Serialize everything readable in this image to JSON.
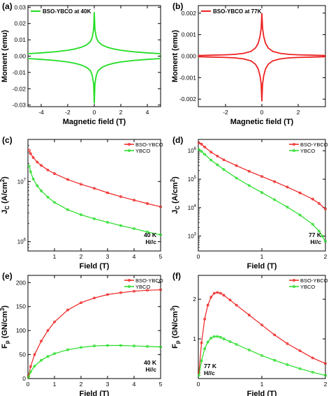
{
  "chart_data": [
    {
      "panel": "(a)",
      "type": "line",
      "title": "",
      "xlabel": "Magnetic field (T)",
      "ylabel": "Moment (emu)",
      "xlim": [
        -5,
        5
      ],
      "ylim": [
        -0.031,
        0.031
      ],
      "xscale": "linear",
      "yscale": "linear",
      "xticks": [
        -4,
        -2,
        0,
        2,
        4
      ],
      "yticks": [
        -0.03,
        -0.02,
        -0.01,
        0.0,
        0.01,
        0.02,
        0.03
      ],
      "ytick_labels": [
        "-0.03",
        "-0.02",
        "-0.01",
        "0.00",
        "0.01",
        "0.02",
        "0.03"
      ],
      "legend": "top-left",
      "grid": false,
      "series": [
        {
          "name": "BSO-YBCO at 40K",
          "color": "#22dd22",
          "style": "line",
          "branch": "upper",
          "x": [
            -5,
            -4,
            -3,
            -2,
            -1.5,
            -1,
            -0.6,
            -0.3,
            -0.15,
            -0.05,
            0,
            0.05,
            0.15,
            0.3,
            0.6,
            1,
            1.5,
            2,
            3,
            4,
            5
          ],
          "y": [
            0.0015,
            0.002,
            0.0026,
            0.0036,
            0.0043,
            0.0054,
            0.0068,
            0.0088,
            0.0115,
            0.0165,
            0.027,
            0.0165,
            0.0115,
            0.0088,
            0.0068,
            0.0054,
            0.0043,
            0.0036,
            0.0026,
            0.002,
            0.0015
          ]
        },
        {
          "name": "",
          "color": "#22dd22",
          "style": "line",
          "branch": "lower",
          "x": [
            -5,
            -4,
            -3,
            -2,
            -1.5,
            -1,
            -0.6,
            -0.3,
            -0.15,
            -0.05,
            0,
            0.05,
            0.15,
            0.3,
            0.6,
            1,
            1.5,
            2,
            3,
            4,
            5
          ],
          "y": [
            -0.0015,
            -0.002,
            -0.0026,
            -0.0036,
            -0.0043,
            -0.0054,
            -0.0068,
            -0.0088,
            -0.0118,
            -0.017,
            -0.029,
            -0.017,
            -0.0118,
            -0.0088,
            -0.0068,
            -0.0054,
            -0.0043,
            -0.0036,
            -0.0026,
            -0.002,
            -0.0015
          ]
        }
      ]
    },
    {
      "panel": "(b)",
      "type": "line",
      "title": "",
      "xlabel": "Magnetic field (T)",
      "ylabel": "Moment (emu)",
      "xlim": [
        -3.5,
        3.5
      ],
      "ylim": [
        -0.00235,
        0.00235
      ],
      "xscale": "linear",
      "yscale": "linear",
      "xticks": [
        -2,
        0,
        2
      ],
      "yticks": [
        -0.002,
        -0.001,
        0.0,
        0.001,
        0.002
      ],
      "ytick_labels": [
        "-0.002",
        "-0.001",
        "0.000",
        "0.001",
        "0.002"
      ],
      "legend": "top-left",
      "grid": false,
      "series": [
        {
          "name": "BSO-YBCO at 77K",
          "color": "#ee2222",
          "style": "line",
          "branch": "upper",
          "x": [
            -3.5,
            -3,
            -2,
            -1.5,
            -1,
            -0.6,
            -0.35,
            -0.2,
            -0.1,
            -0.04,
            0,
            0.04,
            0.1,
            0.2,
            0.35,
            0.6,
            1,
            1.5,
            2,
            3,
            3.5
          ],
          "y": [
            3e-05,
            4e-05,
            6e-05,
            8e-05,
            0.00013,
            0.00022,
            0.00038,
            0.0006,
            0.00092,
            0.0013,
            0.002,
            0.0013,
            0.00092,
            0.0006,
            0.00038,
            0.00022,
            0.00013,
            8e-05,
            6e-05,
            4e-05,
            3e-05
          ]
        },
        {
          "name": "",
          "color": "#ee2222",
          "style": "line",
          "branch": "lower",
          "x": [
            -3.5,
            -3,
            -2,
            -1.5,
            -1,
            -0.6,
            -0.35,
            -0.2,
            -0.1,
            -0.04,
            0,
            0.04,
            0.1,
            0.2,
            0.35,
            0.6,
            1,
            1.5,
            2,
            3,
            3.5
          ],
          "y": [
            -3e-05,
            -4e-05,
            -6e-05,
            -8e-05,
            -0.00013,
            -0.00022,
            -0.00038,
            -0.0006,
            -0.00092,
            -0.0013,
            -0.0021,
            -0.0013,
            -0.00092,
            -0.0006,
            -0.00038,
            -0.00022,
            -0.00013,
            -8e-05,
            -6e-05,
            -4e-05,
            -3e-05
          ]
        }
      ]
    },
    {
      "panel": "(c)",
      "type": "line",
      "title": "",
      "xlabel": "Field (T)",
      "ylabel": "J",
      "ylabel_sub": "C",
      "ylabel_rest": " (A/cm",
      "ylabel_sup": "2",
      "ylabel_end": ")",
      "xlim": [
        0,
        5
      ],
      "ylim": [
        700000,
        50000000
      ],
      "xscale": "linear",
      "yscale": "log",
      "xticks": [
        1,
        2,
        3,
        4,
        5
      ],
      "yticks": [
        1000000,
        10000000
      ],
      "ytick_base": "10",
      "ytick_exponents": [
        "6",
        "7"
      ],
      "legend": "top-right",
      "annotation": [
        "40 K",
        "H//c"
      ],
      "grid": false,
      "series": [
        {
          "name": "BSO-YBCO",
          "color": "#ee2222",
          "style": "line-markers",
          "x": [
            0.05,
            0.1,
            0.2,
            0.35,
            0.5,
            0.75,
            1,
            1.5,
            2,
            2.5,
            3,
            3.5,
            4,
            4.5,
            5
          ],
          "y": [
            33000000,
            29000000,
            25000000,
            21000000,
            18500000,
            15500000,
            13500000,
            10800000,
            9000000,
            7700000,
            6500000,
            5600000,
            4900000,
            4300000,
            3800000
          ]
        },
        {
          "name": "YBCO",
          "color": "#22dd22",
          "style": "line-markers",
          "x": [
            0.05,
            0.1,
            0.2,
            0.35,
            0.5,
            0.75,
            1,
            1.5,
            2,
            2.5,
            3,
            3.5,
            4,
            4.5,
            5
          ],
          "y": [
            18000000,
            14500000,
            11000000,
            8500000,
            7000000,
            5500000,
            4500000,
            3400000,
            2800000,
            2400000,
            2100000,
            1850000,
            1650000,
            1450000,
            1300000
          ]
        }
      ]
    },
    {
      "panel": "(d)",
      "type": "line",
      "title": "",
      "xlabel": "Field (T)",
      "ylabel": "J",
      "ylabel_sub": "C",
      "ylabel_rest": " (A/cm",
      "ylabel_sup": "2",
      "ylabel_end": ")",
      "xlim": [
        0,
        2
      ],
      "ylim": [
        300,
        2500000
      ],
      "xscale": "linear",
      "yscale": "log",
      "xticks": [
        0,
        1,
        2
      ],
      "yticks": [
        1000,
        10000,
        100000,
        1000000
      ],
      "ytick_base": "10",
      "ytick_exponents": [
        "3",
        "4",
        "5",
        "6"
      ],
      "legend": "top-right",
      "annotation": [
        "77 K",
        "H//c"
      ],
      "grid": false,
      "series": [
        {
          "name": "BSO-YBCO",
          "color": "#ee2222",
          "style": "line-markers",
          "x": [
            0.01,
            0.05,
            0.1,
            0.2,
            0.3,
            0.4,
            0.6,
            0.8,
            1.0,
            1.2,
            1.4,
            1.6,
            1.8,
            1.9,
            2.0
          ],
          "y": [
            1900000,
            1700000,
            1350000,
            900000,
            650000,
            480000,
            300000,
            190000,
            125000,
            82000,
            53000,
            33000,
            20000,
            14000,
            9000
          ]
        },
        {
          "name": "YBCO",
          "color": "#22dd22",
          "style": "line-markers",
          "x": [
            0.01,
            0.05,
            0.1,
            0.2,
            0.3,
            0.4,
            0.6,
            0.8,
            1.0,
            1.2,
            1.4,
            1.6,
            1.8,
            1.9,
            1.95,
            2.0
          ],
          "y": [
            1100000,
            950000,
            750000,
            470000,
            320000,
            220000,
            110000,
            60000,
            34000,
            19000,
            10500,
            5500,
            2600,
            1500,
            1000,
            650
          ]
        }
      ]
    },
    {
      "panel": "(e)",
      "type": "line",
      "title": "",
      "xlabel": "Field (T)",
      "ylabel": "F",
      "ylabel_sub": "p",
      "ylabel_rest": " (GN/cm",
      "ylabel_sup": "3",
      "ylabel_end": ")",
      "xlim": [
        0,
        5
      ],
      "ylim": [
        0,
        215
      ],
      "xscale": "linear",
      "yscale": "linear",
      "xticks": [
        0,
        1,
        2,
        3,
        4,
        5
      ],
      "yticks": [
        0,
        50,
        100,
        150,
        200
      ],
      "legend": "top-right",
      "annotation": [
        "40 K",
        "H//c"
      ],
      "grid": false,
      "series": [
        {
          "name": "BSO-YBCO",
          "color": "#ee2222",
          "style": "line-markers",
          "x": [
            0.02,
            0.1,
            0.25,
            0.5,
            0.75,
            1,
            1.5,
            2,
            2.5,
            3,
            3.5,
            4,
            4.5,
            5
          ],
          "y": [
            5,
            25,
            50,
            78,
            100,
            118,
            143,
            158,
            168,
            175,
            179,
            182,
            184,
            185
          ]
        },
        {
          "name": "YBCO",
          "color": "#22dd22",
          "style": "line-markers",
          "x": [
            0.02,
            0.1,
            0.25,
            0.5,
            0.75,
            1,
            1.5,
            2,
            2.5,
            3,
            3.5,
            4,
            4.5,
            5
          ],
          "y": [
            3,
            14,
            26,
            38,
            46,
            52,
            60,
            65,
            68,
            69,
            69,
            68,
            67,
            66
          ]
        }
      ]
    },
    {
      "panel": "(f)",
      "type": "line",
      "title": "",
      "xlabel": "Field (T)",
      "ylabel": "F",
      "ylabel_sub": "p",
      "ylabel_rest": " (GN/cm",
      "ylabel_sup": "3",
      "ylabel_end": ")",
      "xlim": [
        0,
        2
      ],
      "ylim": [
        0,
        2.6
      ],
      "xscale": "linear",
      "yscale": "linear",
      "xticks": [
        0,
        1,
        2
      ],
      "yticks": [
        1,
        2
      ],
      "legend": "top-right",
      "annotation": [
        "77 K",
        "H//c"
      ],
      "grid": false,
      "series": [
        {
          "name": "BSO-YBCO",
          "color": "#ee2222",
          "style": "line-markers",
          "x": [
            0.01,
            0.05,
            0.1,
            0.15,
            0.2,
            0.25,
            0.3,
            0.35,
            0.4,
            0.5,
            0.6,
            0.8,
            1.0,
            1.2,
            1.4,
            1.6,
            1.8,
            2.0
          ],
          "y": [
            0.15,
            0.9,
            1.5,
            1.85,
            2.05,
            2.15,
            2.17,
            2.15,
            2.1,
            1.98,
            1.85,
            1.6,
            1.35,
            1.1,
            0.88,
            0.7,
            0.52,
            0.38
          ]
        },
        {
          "name": "YBCO",
          "color": "#22dd22",
          "style": "line-markers",
          "x": [
            0.01,
            0.05,
            0.1,
            0.15,
            0.2,
            0.25,
            0.3,
            0.35,
            0.4,
            0.5,
            0.6,
            0.8,
            1.0,
            1.2,
            1.4,
            1.6,
            1.8,
            2.0
          ],
          "y": [
            0.08,
            0.45,
            0.75,
            0.92,
            1.02,
            1.06,
            1.06,
            1.04,
            1.0,
            0.93,
            0.86,
            0.72,
            0.58,
            0.46,
            0.35,
            0.25,
            0.16,
            0.08
          ]
        }
      ]
    }
  ]
}
